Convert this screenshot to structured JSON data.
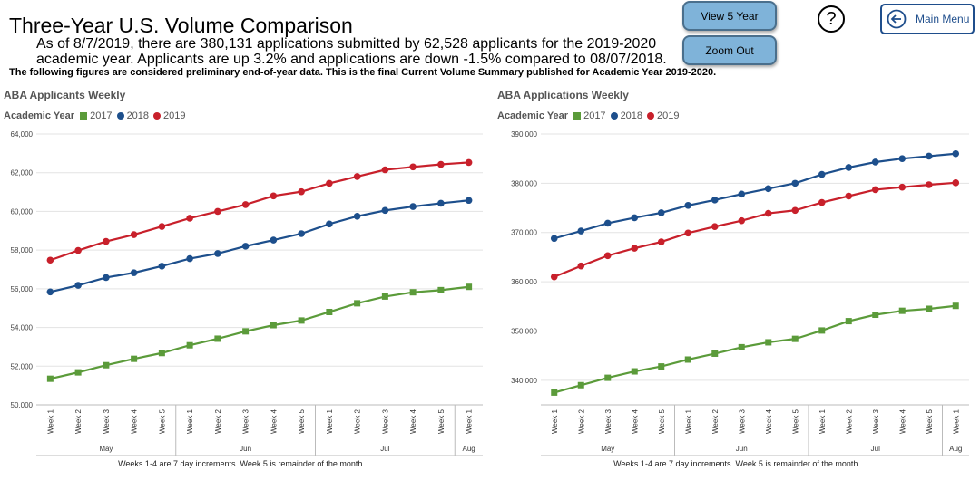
{
  "header": {
    "title": "Three-Year U.S. Volume Comparison",
    "subtitle": "As of 8/7/2019, there are 380,131 applications submitted by 62,528 applicants for the 2019-2020 academic year. Applicants are up 3.2% and applications are down -1.5% compared to 08/07/2018.",
    "note": "The following figures are considered preliminary end-of-year data. This is the final Current Volume Summary published for Academic Year 2019-2020."
  },
  "buttons": {
    "view5": "View 5 Year",
    "zoom": "Zoom Out",
    "help": "?",
    "menu": "Main Menu"
  },
  "colors": {
    "2017": "#5b9b3a",
    "2018": "#1d4f8c",
    "2019": "#c8202b"
  },
  "chart_data": [
    {
      "type": "line",
      "title": "ABA Applicants Weekly",
      "legend_title": "Academic Year",
      "categories": [
        "Week 1",
        "Week 2",
        "Week 3",
        "Week 4",
        "Week 5",
        "Week 1",
        "Week 2",
        "Week 3",
        "Week 4",
        "Week 5",
        "Week 1",
        "Week 2",
        "Week 3",
        "Week 4",
        "Week 5",
        "Week 1"
      ],
      "months": [
        {
          "label": "May",
          "start": 0,
          "end": 4
        },
        {
          "label": "Jun",
          "start": 5,
          "end": 9
        },
        {
          "label": "Jul",
          "start": 10,
          "end": 14
        },
        {
          "label": "Aug",
          "start": 15,
          "end": 15
        }
      ],
      "xlabel": "Weeks 1-4 are 7 day increments. Week 5 is remainder of the month.",
      "ylim": [
        50000,
        64000
      ],
      "yticks": [
        50000,
        52000,
        54000,
        56000,
        58000,
        60000,
        62000,
        64000
      ],
      "ytick_labels": [
        "50,000",
        "52,000",
        "54,000",
        "56,000",
        "58,000",
        "60,000",
        "62,000",
        "64,000"
      ],
      "series": [
        {
          "name": "2017",
          "marker": "square",
          "values": [
            51350,
            51680,
            52050,
            52380,
            52680,
            53080,
            53420,
            53800,
            54120,
            54360,
            54800,
            55250,
            55600,
            55820,
            55930,
            56100
          ]
        },
        {
          "name": "2018",
          "marker": "circle",
          "values": [
            55840,
            56180,
            56580,
            56830,
            57170,
            57560,
            57820,
            58200,
            58520,
            58850,
            59350,
            59750,
            60050,
            60250,
            60420,
            60570
          ]
        },
        {
          "name": "2019",
          "marker": "circle",
          "values": [
            57480,
            57980,
            58450,
            58800,
            59220,
            59650,
            60000,
            60350,
            60800,
            61020,
            61450,
            61800,
            62150,
            62300,
            62430,
            62530
          ]
        }
      ]
    },
    {
      "type": "line",
      "title": "ABA Applications Weekly",
      "legend_title": "Academic Year",
      "categories": [
        "Week 1",
        "Week 2",
        "Week 3",
        "Week 4",
        "Week 5",
        "Week 1",
        "Week 2",
        "Week 3",
        "Week 4",
        "Week 5",
        "Week 1",
        "Week 2",
        "Week 3",
        "Week 4",
        "Week 5",
        "Week 1"
      ],
      "months": [
        {
          "label": "May",
          "start": 0,
          "end": 4
        },
        {
          "label": "Jun",
          "start": 5,
          "end": 9
        },
        {
          "label": "Jul",
          "start": 10,
          "end": 14
        },
        {
          "label": "Aug",
          "start": 15,
          "end": 15
        }
      ],
      "xlabel": "Weeks 1-4 are 7 day increments. Week 5 is remainder of the month.",
      "ylim": [
        335000,
        390000
      ],
      "yticks": [
        340000,
        350000,
        360000,
        370000,
        380000,
        390000
      ],
      "ytick_labels": [
        "340,000",
        "350,000",
        "360,000",
        "370,000",
        "380,000",
        "390,000"
      ],
      "series": [
        {
          "name": "2017",
          "marker": "square",
          "values": [
            337500,
            339000,
            340500,
            341800,
            342800,
            344200,
            345400,
            346700,
            347700,
            348400,
            350100,
            352000,
            353300,
            354100,
            354500,
            355100
          ]
        },
        {
          "name": "2018",
          "marker": "circle",
          "values": [
            368800,
            370300,
            371900,
            373000,
            374000,
            375500,
            376600,
            377800,
            378900,
            380000,
            381800,
            383200,
            384300,
            385000,
            385500,
            386000
          ]
        },
        {
          "name": "2019",
          "marker": "circle",
          "values": [
            361000,
            363200,
            365300,
            366800,
            368100,
            369900,
            371200,
            372400,
            373900,
            374500,
            376100,
            377400,
            378700,
            379200,
            379700,
            380100
          ]
        }
      ]
    }
  ]
}
